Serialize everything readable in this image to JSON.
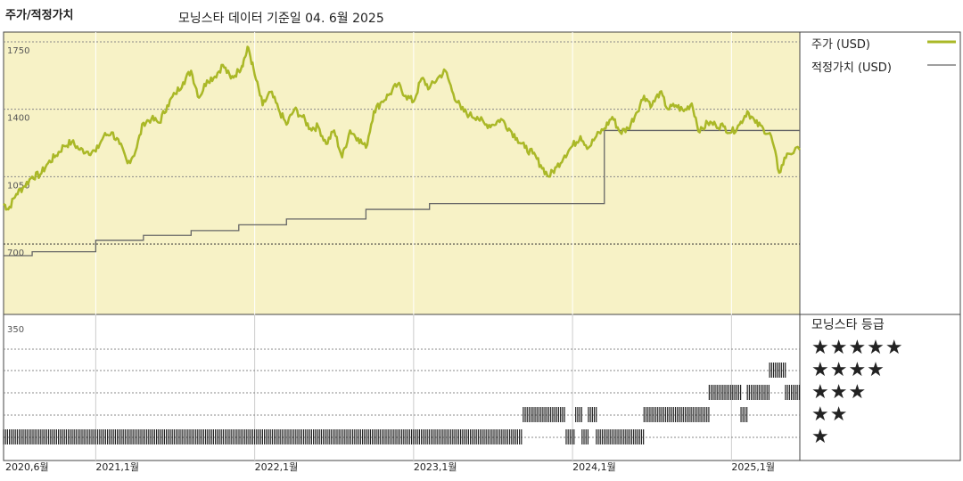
{
  "header": {
    "title": "주가/적정가치",
    "subtitle": "모닝스타 데이터 기준일 04. 6월 2025"
  },
  "legend": {
    "price_label": "주가 (USD)",
    "fair_label": "적정가치 (USD)",
    "price_color": "#aab827",
    "fair_color": "#666666"
  },
  "rating": {
    "title": "모닝스타 등급",
    "levels": [
      "★★★★★",
      "★★★★",
      "★★★",
      "★★",
      "★"
    ]
  },
  "chart_data": {
    "type": "line",
    "title": "주가/적정가치",
    "ylim": [
      350,
      1750
    ],
    "yticks": [
      "1750",
      "1400",
      "1050",
      "700",
      "350"
    ],
    "yticks_values": [
      1750,
      1400,
      1050,
      700,
      350
    ],
    "xticks": [
      "2020,6월",
      "2021,1월",
      "2022,1월",
      "2023,1월",
      "2024,1월",
      "2025,1월"
    ],
    "xticks_values": [
      2020.42,
      2021.0,
      2022.0,
      2023.0,
      2024.0,
      2025.0
    ],
    "xlim": [
      2020.42,
      2025.43
    ],
    "series": [
      {
        "name": "주가 (USD)",
        "x": [
          2020.42,
          2020.45,
          2020.5,
          2020.55,
          2020.6,
          2020.65,
          2020.7,
          2020.75,
          2020.8,
          2020.85,
          2020.9,
          2020.95,
          2021.0,
          2021.05,
          2021.1,
          2021.15,
          2021.2,
          2021.25,
          2021.3,
          2021.35,
          2021.4,
          2021.45,
          2021.5,
          2021.55,
          2021.6,
          2021.65,
          2021.7,
          2021.75,
          2021.8,
          2021.85,
          2021.9,
          2021.93,
          2021.96,
          2022.0,
          2022.05,
          2022.1,
          2022.15,
          2022.2,
          2022.25,
          2022.3,
          2022.35,
          2022.4,
          2022.45,
          2022.5,
          2022.55,
          2022.6,
          2022.65,
          2022.7,
          2022.75,
          2022.8,
          2022.85,
          2022.9,
          2022.95,
          2023.0,
          2023.05,
          2023.1,
          2023.15,
          2023.2,
          2023.25,
          2023.3,
          2023.35,
          2023.4,
          2023.45,
          2023.5,
          2023.55,
          2023.6,
          2023.65,
          2023.7,
          2023.75,
          2023.8,
          2023.85,
          2023.9,
          2023.95,
          2024.0,
          2024.05,
          2024.1,
          2024.15,
          2024.2,
          2024.25,
          2024.3,
          2024.35,
          2024.4,
          2024.45,
          2024.5,
          2024.55,
          2024.6,
          2024.65,
          2024.7,
          2024.75,
          2024.8,
          2024.85,
          2024.9,
          2024.95,
          2025.0,
          2025.05,
          2025.1,
          2025.15,
          2025.2,
          2025.25,
          2025.3,
          2025.35,
          2025.43
        ],
        "y": [
          910,
          880,
          960,
          1000,
          1050,
          1060,
          1120,
          1160,
          1210,
          1230,
          1190,
          1180,
          1180,
          1260,
          1280,
          1220,
          1120,
          1180,
          1330,
          1350,
          1330,
          1420,
          1480,
          1540,
          1600,
          1460,
          1550,
          1570,
          1630,
          1560,
          1600,
          1650,
          1720,
          1580,
          1420,
          1490,
          1400,
          1320,
          1400,
          1360,
          1300,
          1310,
          1220,
          1290,
          1150,
          1290,
          1250,
          1200,
          1390,
          1440,
          1480,
          1530,
          1470,
          1440,
          1560,
          1510,
          1560,
          1600,
          1480,
          1400,
          1370,
          1360,
          1320,
          1320,
          1350,
          1300,
          1250,
          1200,
          1170,
          1110,
          1050,
          1100,
          1160,
          1210,
          1260,
          1200,
          1260,
          1300,
          1360,
          1280,
          1300,
          1380,
          1470,
          1420,
          1490,
          1400,
          1420,
          1390,
          1430,
          1280,
          1330,
          1320,
          1310,
          1280,
          1320,
          1390,
          1330,
          1300,
          1260,
          1070,
          1170,
          1190
        ]
      },
      {
        "name": "적정가치 (USD)",
        "type": "step",
        "x": [
          2020.42,
          2020.5,
          2020.6,
          2021.0,
          2021.3,
          2021.6,
          2021.9,
          2022.2,
          2022.7,
          2023.1,
          2024.2,
          2025.1,
          2025.43
        ],
        "y": [
          640,
          640,
          660,
          720,
          745,
          770,
          800,
          830,
          880,
          910,
          1290,
          1290,
          1290
        ]
      }
    ],
    "rating_history": [
      {
        "level": 1,
        "segments": [
          [
            2020.42,
            2023.69
          ],
          [
            2023.96,
            2024.02
          ],
          [
            2024.06,
            2024.1
          ],
          [
            2024.15,
            2024.45
          ]
        ]
      },
      {
        "level": 2,
        "segments": [
          [
            2023.69,
            2023.96
          ],
          [
            2024.02,
            2024.06
          ],
          [
            2024.1,
            2024.15
          ],
          [
            2024.45,
            2024.86
          ],
          [
            2025.06,
            2025.1
          ]
        ]
      },
      {
        "level": 3,
        "segments": [
          [
            2024.86,
            2025.06
          ],
          [
            2025.1,
            2025.24
          ],
          [
            2025.34,
            2025.43
          ]
        ]
      },
      {
        "level": 4,
        "segments": [
          [
            2025.24,
            2025.34
          ]
        ]
      }
    ]
  }
}
